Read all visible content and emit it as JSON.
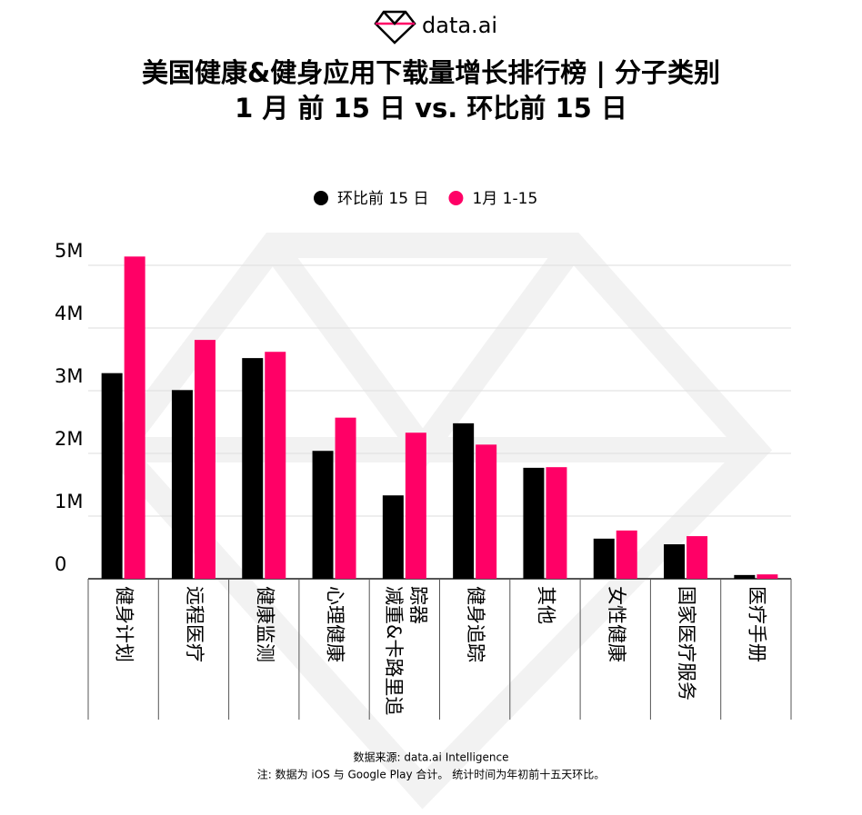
{
  "logo": "data.ai",
  "chart_data": {
    "type": "bar",
    "title": "美国健康&健身应用下载量增长排行榜 | 分子类别",
    "subtitle": "1 月 前 15 日 vs. 环比前 15 日",
    "categories": [
      "健身计划",
      "远程医疗",
      "健康监测",
      "心理健康",
      "减重&卡路里追踪器",
      "健身追踪",
      "其他",
      "女性健康",
      "国家医疗服务",
      "医疗手册"
    ],
    "series": [
      {
        "name": "环比前 15 日",
        "color": "#000000",
        "values": [
          3.28,
          3.01,
          3.52,
          2.04,
          1.33,
          2.48,
          1.77,
          0.64,
          0.55,
          0.06
        ]
      },
      {
        "name": "1月 1-15",
        "color": "#ff0066",
        "values": [
          5.14,
          3.81,
          3.62,
          2.57,
          2.33,
          2.14,
          1.78,
          0.77,
          0.68,
          0.07
        ]
      }
    ],
    "ylim": [
      0,
      5
    ],
    "yticks": [
      {
        "value": 0,
        "label": "0"
      },
      {
        "value": 1,
        "label": "1M"
      },
      {
        "value": 2,
        "label": "2M"
      },
      {
        "value": 3,
        "label": "3M"
      },
      {
        "value": 4,
        "label": "4M"
      },
      {
        "value": 5,
        "label": "5M"
      }
    ],
    "grid": true,
    "legend": "top",
    "notes": [
      "数据来源: data.ai Intelligence",
      "注: 数据为 iOS 与 Google Play 合计。 统计时间为年初前十五天环比。"
    ]
  }
}
